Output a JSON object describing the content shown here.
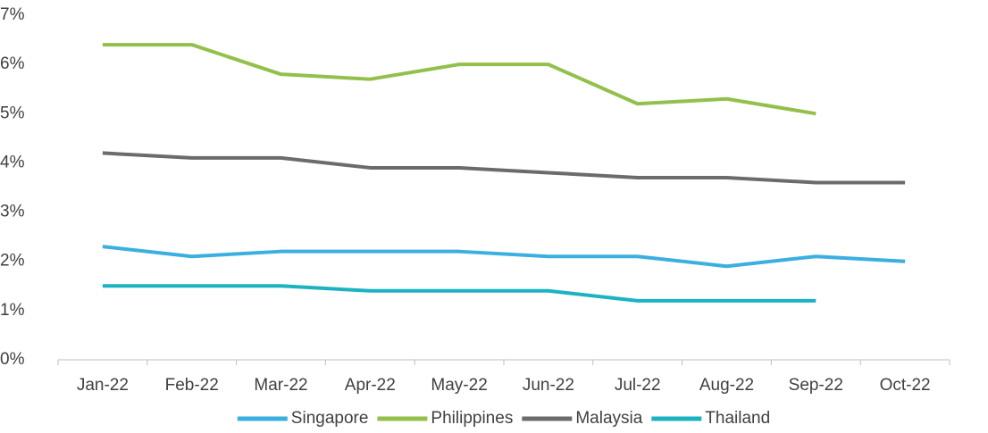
{
  "chart_data": {
    "type": "line",
    "categories": [
      "Jan-22",
      "Feb-22",
      "Mar-22",
      "Apr-22",
      "May-22",
      "Jun-22",
      "Jul-22",
      "Aug-22",
      "Sep-22",
      "Oct-22"
    ],
    "series": [
      {
        "name": "Singapore",
        "color": "#3aafe0",
        "values": [
          2.3,
          2.1,
          2.2,
          2.2,
          2.2,
          2.1,
          2.1,
          1.9,
          2.1,
          2.0
        ]
      },
      {
        "name": "Philippines",
        "color": "#92c04a",
        "values": [
          6.4,
          6.4,
          5.8,
          5.7,
          6.0,
          6.0,
          5.2,
          5.3,
          5.0,
          null
        ]
      },
      {
        "name": "Malaysia",
        "color": "#6d6a6d",
        "values": [
          4.2,
          4.1,
          4.1,
          3.9,
          3.9,
          3.8,
          3.7,
          3.7,
          3.6,
          3.6
        ]
      },
      {
        "name": "Thailand",
        "color": "#1bb3c2",
        "values": [
          1.5,
          1.5,
          1.5,
          1.4,
          1.4,
          1.4,
          1.2,
          1.2,
          1.2,
          null
        ]
      }
    ],
    "ylim": [
      0,
      7
    ],
    "yticks": [
      {
        "value": 0,
        "label": "0%"
      },
      {
        "value": 1,
        "label": "1%"
      },
      {
        "value": 2,
        "label": "2%"
      },
      {
        "value": 3,
        "label": "3%"
      },
      {
        "value": 4,
        "label": "4%"
      },
      {
        "value": 5,
        "label": "5%"
      },
      {
        "value": 6,
        "label": "6%"
      },
      {
        "value": 7,
        "label": "7%"
      }
    ],
    "grid": false,
    "legend": "bottom"
  }
}
